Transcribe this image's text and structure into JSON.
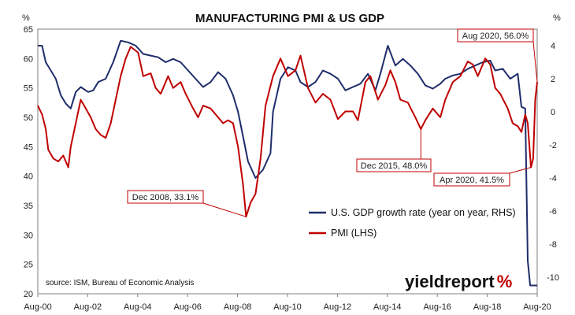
{
  "chart_data": {
    "type": "line",
    "title": "MANUFACTURING PMI & US GDP",
    "left_axis": {
      "label": "%",
      "range": [
        20,
        65
      ],
      "ticks": [
        "65",
        "60",
        "55",
        "50",
        "45",
        "40",
        "35",
        "30",
        "25",
        "20"
      ]
    },
    "right_axis": {
      "label": "%",
      "range": [
        -11,
        5
      ],
      "ticks": [
        "4",
        "2",
        "0",
        "-2",
        "-4",
        "-6",
        "-8",
        "-10"
      ]
    },
    "x_ticks": [
      "Aug-00",
      "Aug-02",
      "Aug-04",
      "Aug-06",
      "Aug-08",
      "Aug-10",
      "Aug-12",
      "Aug-14",
      "Aug-16",
      "Aug-18",
      "Aug-20"
    ],
    "x_range": [
      2000.58,
      2020.58
    ],
    "series": [
      {
        "name": "U.S. GDP growth rate (year on year, RHS)",
        "axis": "right",
        "color": "#1f2d6b",
        "points": [
          [
            2000.58,
            4.0
          ],
          [
            2000.75,
            4.0
          ],
          [
            2000.9,
            3.0
          ],
          [
            2001.1,
            2.5
          ],
          [
            2001.3,
            2.0
          ],
          [
            2001.5,
            1.0
          ],
          [
            2001.7,
            0.5
          ],
          [
            2001.9,
            0.2
          ],
          [
            2002.1,
            1.2
          ],
          [
            2002.3,
            1.5
          ],
          [
            2002.6,
            1.2
          ],
          [
            2002.8,
            1.3
          ],
          [
            2003.0,
            1.8
          ],
          [
            2003.3,
            2.0
          ],
          [
            2003.6,
            3.0
          ],
          [
            2003.9,
            4.3
          ],
          [
            2004.2,
            4.2
          ],
          [
            2004.5,
            4.0
          ],
          [
            2004.8,
            3.5
          ],
          [
            2005.1,
            3.4
          ],
          [
            2005.4,
            3.3
          ],
          [
            2005.7,
            3.0
          ],
          [
            2006.0,
            3.2
          ],
          [
            2006.3,
            3.0
          ],
          [
            2006.6,
            2.5
          ],
          [
            2006.9,
            2.0
          ],
          [
            2007.2,
            1.5
          ],
          [
            2007.5,
            1.8
          ],
          [
            2007.8,
            2.4
          ],
          [
            2008.1,
            2.0
          ],
          [
            2008.4,
            1.0
          ],
          [
            2008.6,
            0.0
          ],
          [
            2008.8,
            -1.5
          ],
          [
            2009.0,
            -3.0
          ],
          [
            2009.3,
            -4.0
          ],
          [
            2009.6,
            -3.5
          ],
          [
            2009.9,
            -2.5
          ],
          [
            2010.0,
            0.0
          ],
          [
            2010.3,
            2.0
          ],
          [
            2010.6,
            2.7
          ],
          [
            2010.9,
            2.5
          ],
          [
            2011.1,
            1.8
          ],
          [
            2011.4,
            1.5
          ],
          [
            2011.7,
            1.8
          ],
          [
            2012.0,
            2.5
          ],
          [
            2012.3,
            2.3
          ],
          [
            2012.6,
            2.0
          ],
          [
            2012.9,
            1.3
          ],
          [
            2013.2,
            1.5
          ],
          [
            2013.5,
            1.7
          ],
          [
            2013.8,
            2.3
          ],
          [
            2014.1,
            1.3
          ],
          [
            2014.3,
            2.3
          ],
          [
            2014.6,
            4.0
          ],
          [
            2014.9,
            2.8
          ],
          [
            2015.2,
            3.2
          ],
          [
            2015.5,
            2.8
          ],
          [
            2015.8,
            2.3
          ],
          [
            2016.1,
            1.6
          ],
          [
            2016.4,
            1.4
          ],
          [
            2016.7,
            1.7
          ],
          [
            2016.9,
            2.0
          ],
          [
            2017.2,
            2.2
          ],
          [
            2017.5,
            2.3
          ],
          [
            2017.8,
            2.6
          ],
          [
            2018.1,
            2.8
          ],
          [
            2018.4,
            3.0
          ],
          [
            2018.7,
            3.1
          ],
          [
            2018.9,
            2.5
          ],
          [
            2019.2,
            2.6
          ],
          [
            2019.5,
            2.0
          ],
          [
            2019.8,
            2.3
          ],
          [
            2019.95,
            0.3
          ],
          [
            2020.1,
            0.2
          ],
          [
            2020.2,
            -9.0
          ],
          [
            2020.3,
            -10.5
          ],
          [
            2020.58,
            -10.5
          ]
        ]
      },
      {
        "name": "PMI (LHS)",
        "axis": "left",
        "color": "#c00000",
        "points": [
          [
            2000.58,
            52.0
          ],
          [
            2000.75,
            50.5
          ],
          [
            2000.9,
            48.0
          ],
          [
            2001.0,
            44.5
          ],
          [
            2001.2,
            43.0
          ],
          [
            2001.4,
            42.5
          ],
          [
            2001.6,
            43.5
          ],
          [
            2001.8,
            41.5
          ],
          [
            2001.9,
            45.0
          ],
          [
            2002.1,
            49.0
          ],
          [
            2002.3,
            53.0
          ],
          [
            2002.5,
            51.5
          ],
          [
            2002.7,
            50.0
          ],
          [
            2002.9,
            48.0
          ],
          [
            2003.1,
            47.0
          ],
          [
            2003.3,
            46.5
          ],
          [
            2003.5,
            49.0
          ],
          [
            2003.7,
            53.0
          ],
          [
            2003.9,
            57.0
          ],
          [
            2004.1,
            60.0
          ],
          [
            2004.3,
            62.0
          ],
          [
            2004.6,
            61.0
          ],
          [
            2004.8,
            57.0
          ],
          [
            2005.1,
            57.5
          ],
          [
            2005.3,
            55.0
          ],
          [
            2005.5,
            54.0
          ],
          [
            2005.8,
            57.0
          ],
          [
            2006.0,
            55.0
          ],
          [
            2006.3,
            56.0
          ],
          [
            2006.5,
            54.0
          ],
          [
            2006.8,
            51.5
          ],
          [
            2007.0,
            50.0
          ],
          [
            2007.2,
            52.0
          ],
          [
            2007.5,
            51.5
          ],
          [
            2007.8,
            50.0
          ],
          [
            2008.0,
            49.0
          ],
          [
            2008.2,
            49.5
          ],
          [
            2008.4,
            49.0
          ],
          [
            2008.6,
            45.0
          ],
          [
            2008.8,
            38.5
          ],
          [
            2008.92,
            33.1
          ],
          [
            2009.1,
            35.5
          ],
          [
            2009.3,
            37.0
          ],
          [
            2009.5,
            43.0
          ],
          [
            2009.7,
            52.0
          ],
          [
            2010.0,
            57.0
          ],
          [
            2010.3,
            60.0
          ],
          [
            2010.6,
            57.0
          ],
          [
            2010.9,
            58.0
          ],
          [
            2011.1,
            60.5
          ],
          [
            2011.4,
            55.0
          ],
          [
            2011.7,
            52.5
          ],
          [
            2012.0,
            54.0
          ],
          [
            2012.3,
            53.0
          ],
          [
            2012.6,
            49.7
          ],
          [
            2012.9,
            51.0
          ],
          [
            2013.2,
            51.0
          ],
          [
            2013.4,
            49.5
          ],
          [
            2013.7,
            56.0
          ],
          [
            2013.9,
            57.0
          ],
          [
            2014.2,
            53.0
          ],
          [
            2014.5,
            55.5
          ],
          [
            2014.7,
            58.0
          ],
          [
            2014.9,
            56.0
          ],
          [
            2015.1,
            53.0
          ],
          [
            2015.4,
            52.5
          ],
          [
            2015.7,
            50.0
          ],
          [
            2015.92,
            48.0
          ],
          [
            2016.1,
            49.5
          ],
          [
            2016.4,
            51.5
          ],
          [
            2016.7,
            50.0
          ],
          [
            2016.9,
            53.0
          ],
          [
            2017.2,
            56.0
          ],
          [
            2017.5,
            57.0
          ],
          [
            2017.8,
            59.5
          ],
          [
            2018.0,
            59.0
          ],
          [
            2018.2,
            57.0
          ],
          [
            2018.5,
            60.0
          ],
          [
            2018.7,
            59.0
          ],
          [
            2018.9,
            55.0
          ],
          [
            2019.1,
            54.0
          ],
          [
            2019.4,
            51.5
          ],
          [
            2019.6,
            49.0
          ],
          [
            2019.8,
            48.5
          ],
          [
            2019.95,
            47.5
          ],
          [
            2020.1,
            50.5
          ],
          [
            2020.2,
            49.0
          ],
          [
            2020.33,
            41.5
          ],
          [
            2020.42,
            43.0
          ],
          [
            2020.5,
            53.0
          ],
          [
            2020.58,
            56.0
          ]
        ]
      }
    ],
    "annotations": [
      {
        "text": "Aug 2020, 56.0%",
        "point": [
          2020.58,
          56.0
        ],
        "axis": "left"
      },
      {
        "text": "Dec 2015, 48.0%",
        "point": [
          2015.92,
          48.0
        ],
        "axis": "left"
      },
      {
        "text": "Dec 2008, 33.1%",
        "point": [
          2008.92,
          33.1
        ],
        "axis": "left"
      },
      {
        "text": "Apr 2020, 41.5%",
        "point": [
          2020.33,
          41.5
        ],
        "axis": "left"
      }
    ],
    "legend_placement": "bottom-right inside plot",
    "grid": false
  },
  "source": "source: ISM, Bureau of Economic Analysis",
  "brand": {
    "text": "yieldreport",
    "pct": "%",
    "pct_color": "#c00000"
  }
}
